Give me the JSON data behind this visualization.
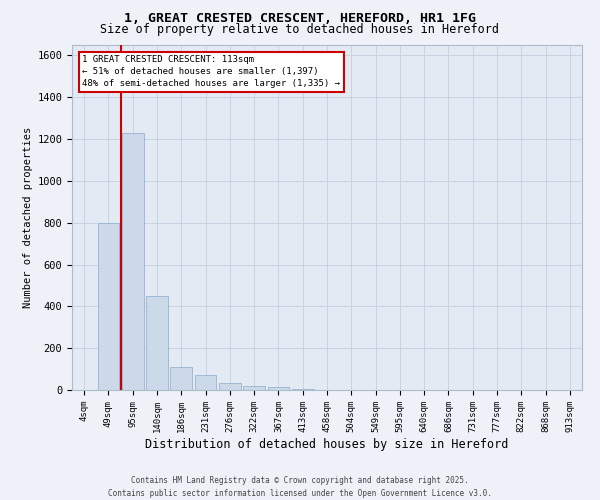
{
  "title_line1": "1, GREAT CRESTED CRESCENT, HEREFORD, HR1 1FG",
  "title_line2": "Size of property relative to detached houses in Hereford",
  "xlabel": "Distribution of detached houses by size in Hereford",
  "ylabel": "Number of detached properties",
  "categories": [
    "4sqm",
    "49sqm",
    "95sqm",
    "140sqm",
    "186sqm",
    "231sqm",
    "276sqm",
    "322sqm",
    "367sqm",
    "413sqm",
    "458sqm",
    "504sqm",
    "549sqm",
    "595sqm",
    "640sqm",
    "686sqm",
    "731sqm",
    "777sqm",
    "822sqm",
    "868sqm",
    "913sqm"
  ],
  "values": [
    2,
    800,
    1230,
    450,
    110,
    70,
    35,
    20,
    15,
    5,
    0,
    0,
    0,
    0,
    0,
    0,
    0,
    0,
    0,
    0,
    0
  ],
  "bar_color": "#ccd9e8",
  "bar_edge_color": "#8aabcc",
  "bar_edge_width": 0.5,
  "grid_color": "#c8d4e4",
  "bg_color": "#e4eaf4",
  "fig_color": "#eef2f8",
  "ylim": [
    0,
    1650
  ],
  "yticks": [
    0,
    200,
    400,
    600,
    800,
    1000,
    1200,
    1400,
    1600
  ],
  "marker_color": "#cc0000",
  "annotation_title": "1 GREAT CRESTED CRESCENT: 113sqm",
  "annotation_line1": "← 51% of detached houses are smaller (1,397)",
  "annotation_line2": "48% of semi-detached houses are larger (1,335) →",
  "footer_line1": "Contains HM Land Registry data © Crown copyright and database right 2025.",
  "footer_line2": "Contains public sector information licensed under the Open Government Licence v3.0."
}
